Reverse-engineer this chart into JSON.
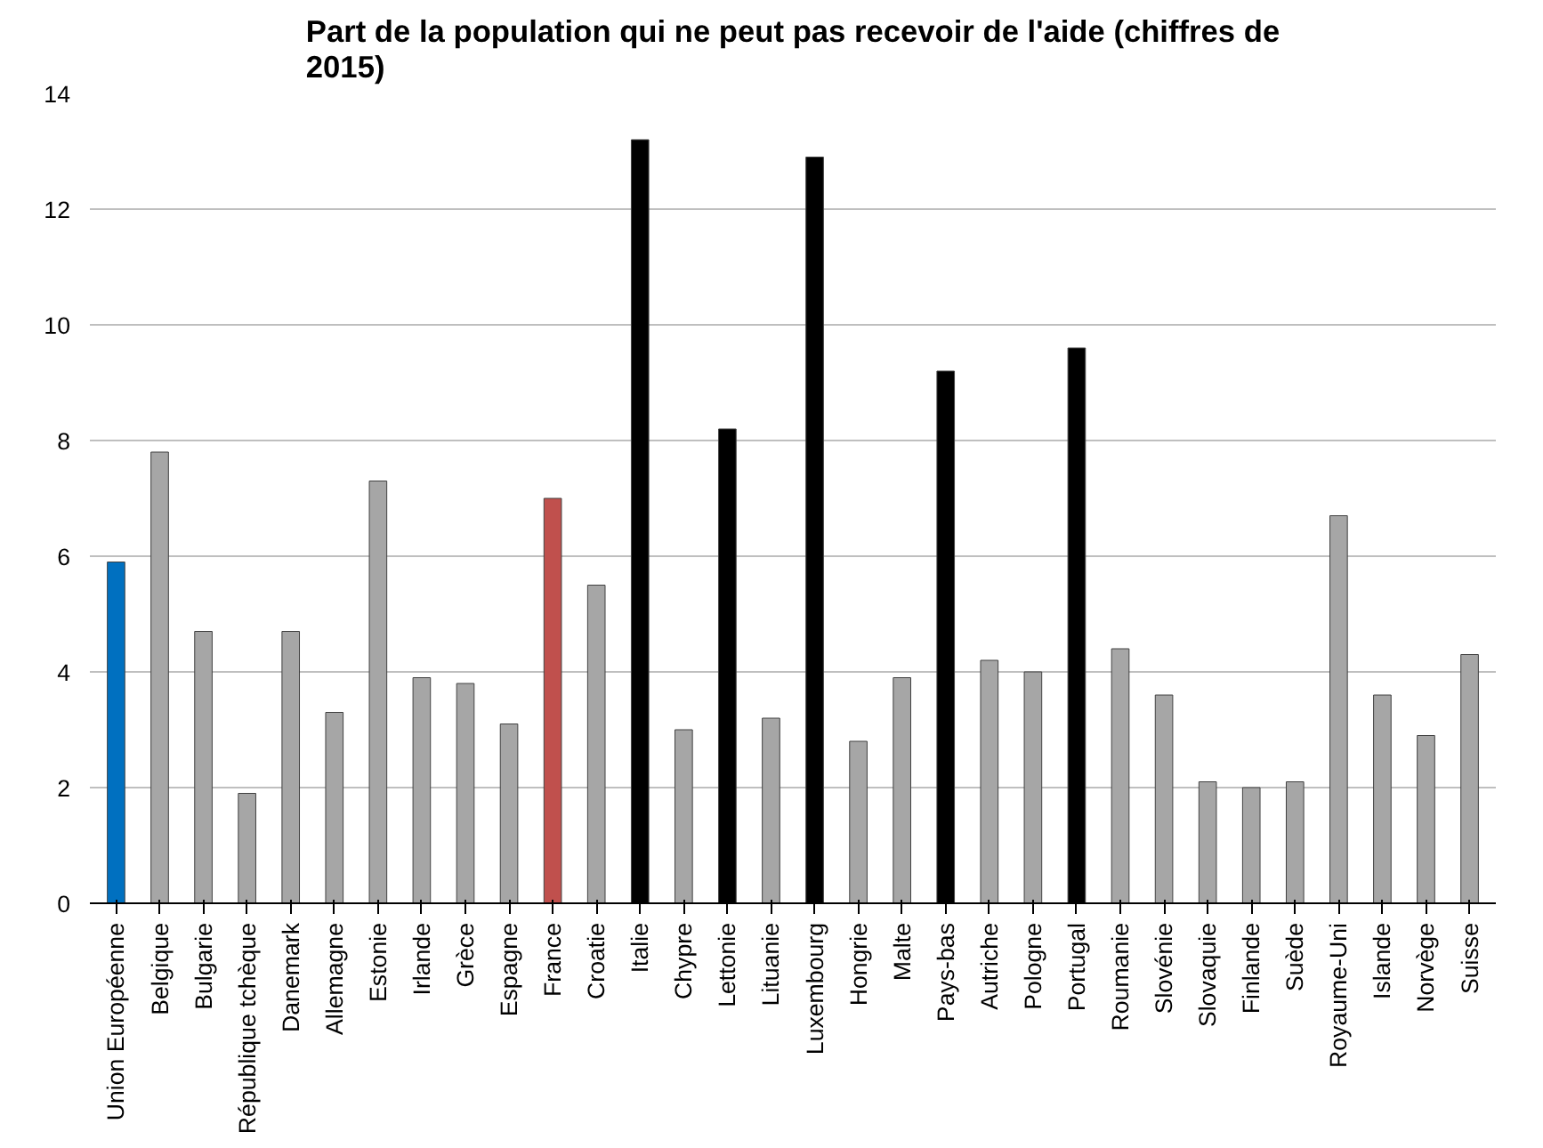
{
  "chart_data": {
    "type": "bar",
    "title": "Part de la population qui ne peut pas recevoir de l'aide (chiffres de 2015)",
    "categories": [
      "Union Européenne",
      "Belgique",
      "Bulgarie",
      "République tchèque",
      "Danemark",
      "Allemagne",
      "Estonie",
      "Irlande",
      "Grèce",
      "Espagne",
      "France",
      "Croatie",
      "Italie",
      "Chypre",
      "Lettonie",
      "Lituanie",
      "Luxembourg",
      "Hongrie",
      "Malte",
      "Pays-bas",
      "Autriche",
      "Pologne",
      "Portugal",
      "Roumanie",
      "Slovénie",
      "Slovaquie",
      "Finlande",
      "Suède",
      "Royaume-Uni",
      "Islande",
      "Norvège",
      "Suisse"
    ],
    "values": [
      5.9,
      7.8,
      4.7,
      1.9,
      4.7,
      3.3,
      7.3,
      3.9,
      3.8,
      3.1,
      7.0,
      5.5,
      13.2,
      3.0,
      8.2,
      3.2,
      12.9,
      2.8,
      3.9,
      9.2,
      4.2,
      4.0,
      9.6,
      4.4,
      3.6,
      2.1,
      2.0,
      2.1,
      6.7,
      3.6,
      2.9,
      4.3
    ],
    "colors": [
      "#0070c0",
      "#a6a6a6",
      "#a6a6a6",
      "#a6a6a6",
      "#a6a6a6",
      "#a6a6a6",
      "#a6a6a6",
      "#a6a6a6",
      "#a6a6a6",
      "#a6a6a6",
      "#c0504d",
      "#a6a6a6",
      "#000000",
      "#a6a6a6",
      "#000000",
      "#a6a6a6",
      "#000000",
      "#a6a6a6",
      "#a6a6a6",
      "#000000",
      "#a6a6a6",
      "#a6a6a6",
      "#000000",
      "#a6a6a6",
      "#a6a6a6",
      "#a6a6a6",
      "#a6a6a6",
      "#a6a6a6",
      "#a6a6a6",
      "#a6a6a6",
      "#a6a6a6",
      "#a6a6a6"
    ],
    "ylim": [
      0,
      14
    ],
    "yticks": [
      0,
      2,
      4,
      6,
      8,
      10,
      12,
      14
    ],
    "grid": "y"
  }
}
